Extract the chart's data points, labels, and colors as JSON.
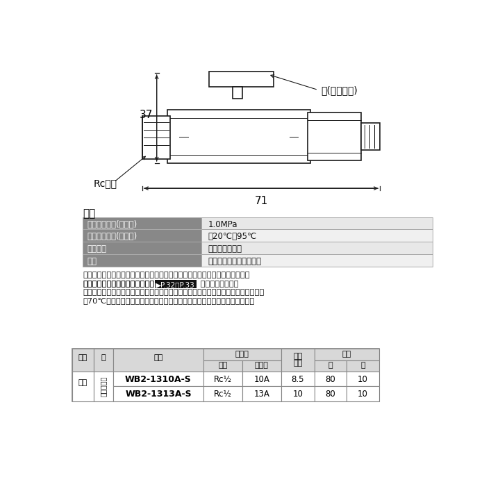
{
  "bg_color": "#ffffff",
  "spec_title": "仕様",
  "spec_rows": [
    {
      "label": "最高許容圧力(バルブ)",
      "value": "1.0MPa",
      "label_bg": "#888888",
      "row_bg": "#e8e8e8"
    },
    {
      "label": "使用温度範囲(バルブ)",
      "value": "－20℃～95℃",
      "label_bg": "#888888",
      "row_bg": "#f0f0f0"
    },
    {
      "label": "使用流体",
      "value": "冷温水・不凍液",
      "label_bg": "#888888",
      "row_bg": "#e8e8e8"
    },
    {
      "label": "用途",
      "value": "給水・給湯・暖房・融雪",
      "label_bg": "#888888",
      "row_bg": "#f0f0f0"
    }
  ],
  "notes_line1a": "・上記は継手部の仕様のため、実使用においての流体圧力と流体温度は、樹脂",
  "notes_line1b": "　管の使用温度別最高使用圧力　",
  "notes_page_ref": "▶P.32・P.33",
  "notes_line1c": " をご確認下さい。",
  "notes_line2": "・冷温水、不凍液以外には使用しないで下さい。灯油等の油類には使用できません。",
  "notes_line3": "・70℃を超える湯を常時通水または循環する配管には使用しないで下さい。",
  "table_rows": [
    {
      "hinban": "WB2-1310A-S",
      "neji": "Rc½",
      "jushi": "10A",
      "naike": "8.5",
      "dai": "80",
      "sho": "10"
    },
    {
      "hinban": "WB2-1313A-S",
      "neji": "Rc½",
      "jushi": "13A",
      "naike": "10",
      "dai": "80",
      "sho": "10"
    }
  ],
  "dim_37": "37",
  "dim_71": "71",
  "label_rc": "Rcねじ",
  "label_handle": "色(ハンドル)"
}
